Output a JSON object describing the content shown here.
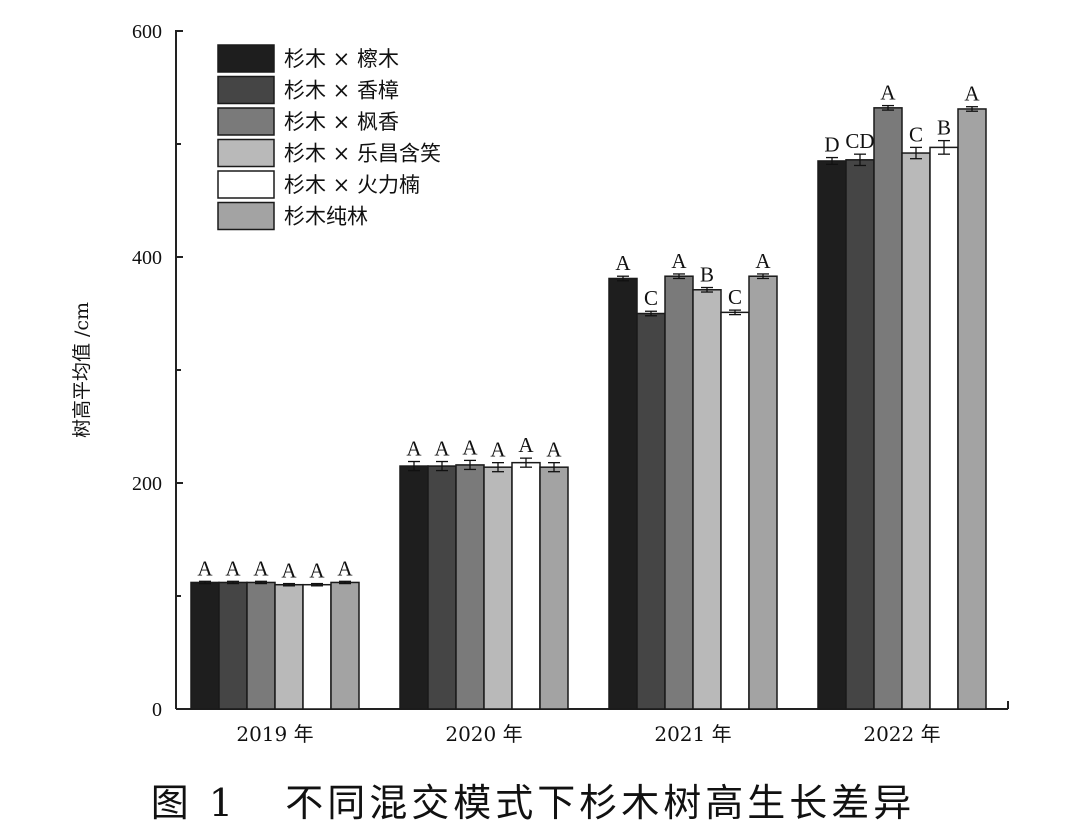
{
  "caption": "图 1   不同混交模式下杉木树高生长差异",
  "colors": [
    "#1e1e1e",
    "#454545",
    "#7a7a7a",
    "#b9b9b9",
    "#ffffff",
    "#a3a3a3"
  ],
  "chart_data": {
    "type": "bar",
    "title": "",
    "xlabel": "",
    "ylabel": "树高平均值 /cm",
    "ylim": [
      0,
      600
    ],
    "yticks": [
      0,
      200,
      400,
      600
    ],
    "grid": false,
    "legend_position": "top-left",
    "categories": [
      "2019 年",
      "2020 年",
      "2021 年",
      "2022 年"
    ],
    "series": [
      {
        "name": "杉木 × 檫木",
        "values": [
          112,
          215,
          381,
          485
        ],
        "errors": [
          1,
          4,
          2,
          3
        ],
        "significance": [
          "A",
          "A",
          "A",
          "D"
        ]
      },
      {
        "name": "杉木 × 香樟",
        "values": [
          112,
          215,
          350,
          486
        ],
        "errors": [
          1,
          4,
          2,
          5
        ],
        "significance": [
          "A",
          "A",
          "C",
          "CD"
        ]
      },
      {
        "name": "杉木 × 枫香",
        "values": [
          112,
          216,
          383,
          532
        ],
        "errors": [
          1,
          4,
          2,
          2
        ],
        "significance": [
          "A",
          "A",
          "A",
          "A"
        ]
      },
      {
        "name": "杉木 × 乐昌含笑",
        "values": [
          110,
          214,
          371,
          492
        ],
        "errors": [
          1,
          4,
          2,
          5
        ],
        "significance": [
          "A",
          "A",
          "B",
          "C"
        ]
      },
      {
        "name": "杉木 × 火力楠",
        "values": [
          110,
          218,
          351,
          497
        ],
        "errors": [
          1,
          4,
          2,
          6
        ],
        "significance": [
          "A",
          "A",
          "C",
          "B"
        ]
      },
      {
        "name": "杉木纯林",
        "values": [
          112,
          214,
          383,
          531
        ],
        "errors": [
          1,
          4,
          2,
          2
        ],
        "significance": [
          "A",
          "A",
          "A",
          "A"
        ]
      }
    ]
  }
}
